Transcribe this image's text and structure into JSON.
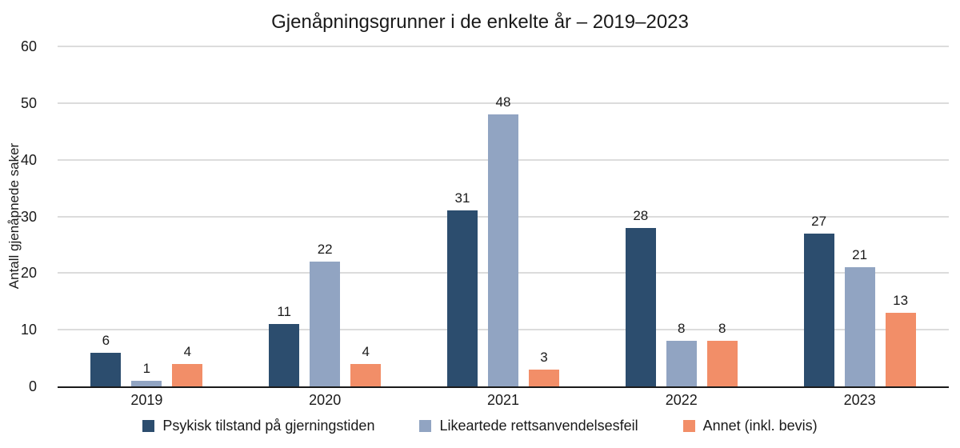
{
  "title": "Gjenåpningsgrunner i de enkelte år – 2019–2023",
  "y_axis_label": "Antall gjenåpnede saker",
  "colors": {
    "series1": "#2c4d6e",
    "series2": "#91a4c2",
    "series3": "#f28e68",
    "gridline": "#b8b8b8",
    "baseline": "#1a1a1a",
    "background": "#ffffff",
    "text": "#1a1a1a"
  },
  "chart_data": {
    "type": "bar",
    "title": "Gjenåpningsgrunner i de enkelte år – 2019–2023",
    "xlabel": "",
    "ylabel": "Antall gjenåpnede saker",
    "ylim": [
      0,
      60
    ],
    "ytick_interval": 10,
    "yticks": [
      0,
      10,
      20,
      30,
      40,
      50,
      60
    ],
    "grid": true,
    "legend_position": "bottom",
    "data_labels": true,
    "categories": [
      "2019",
      "2020",
      "2021",
      "2022",
      "2023"
    ],
    "series": [
      {
        "name": "Psykisk tilstand på gjerningstiden",
        "color": "#2c4d6e",
        "values": [
          6,
          11,
          31,
          28,
          27
        ]
      },
      {
        "name": "Likeartede rettsanvendelsesfeil",
        "color": "#91a4c2",
        "values": [
          1,
          22,
          48,
          8,
          21
        ]
      },
      {
        "name": "Annet (inkl. bevis)",
        "color": "#f28e68",
        "values": [
          4,
          4,
          3,
          8,
          13
        ]
      }
    ]
  }
}
